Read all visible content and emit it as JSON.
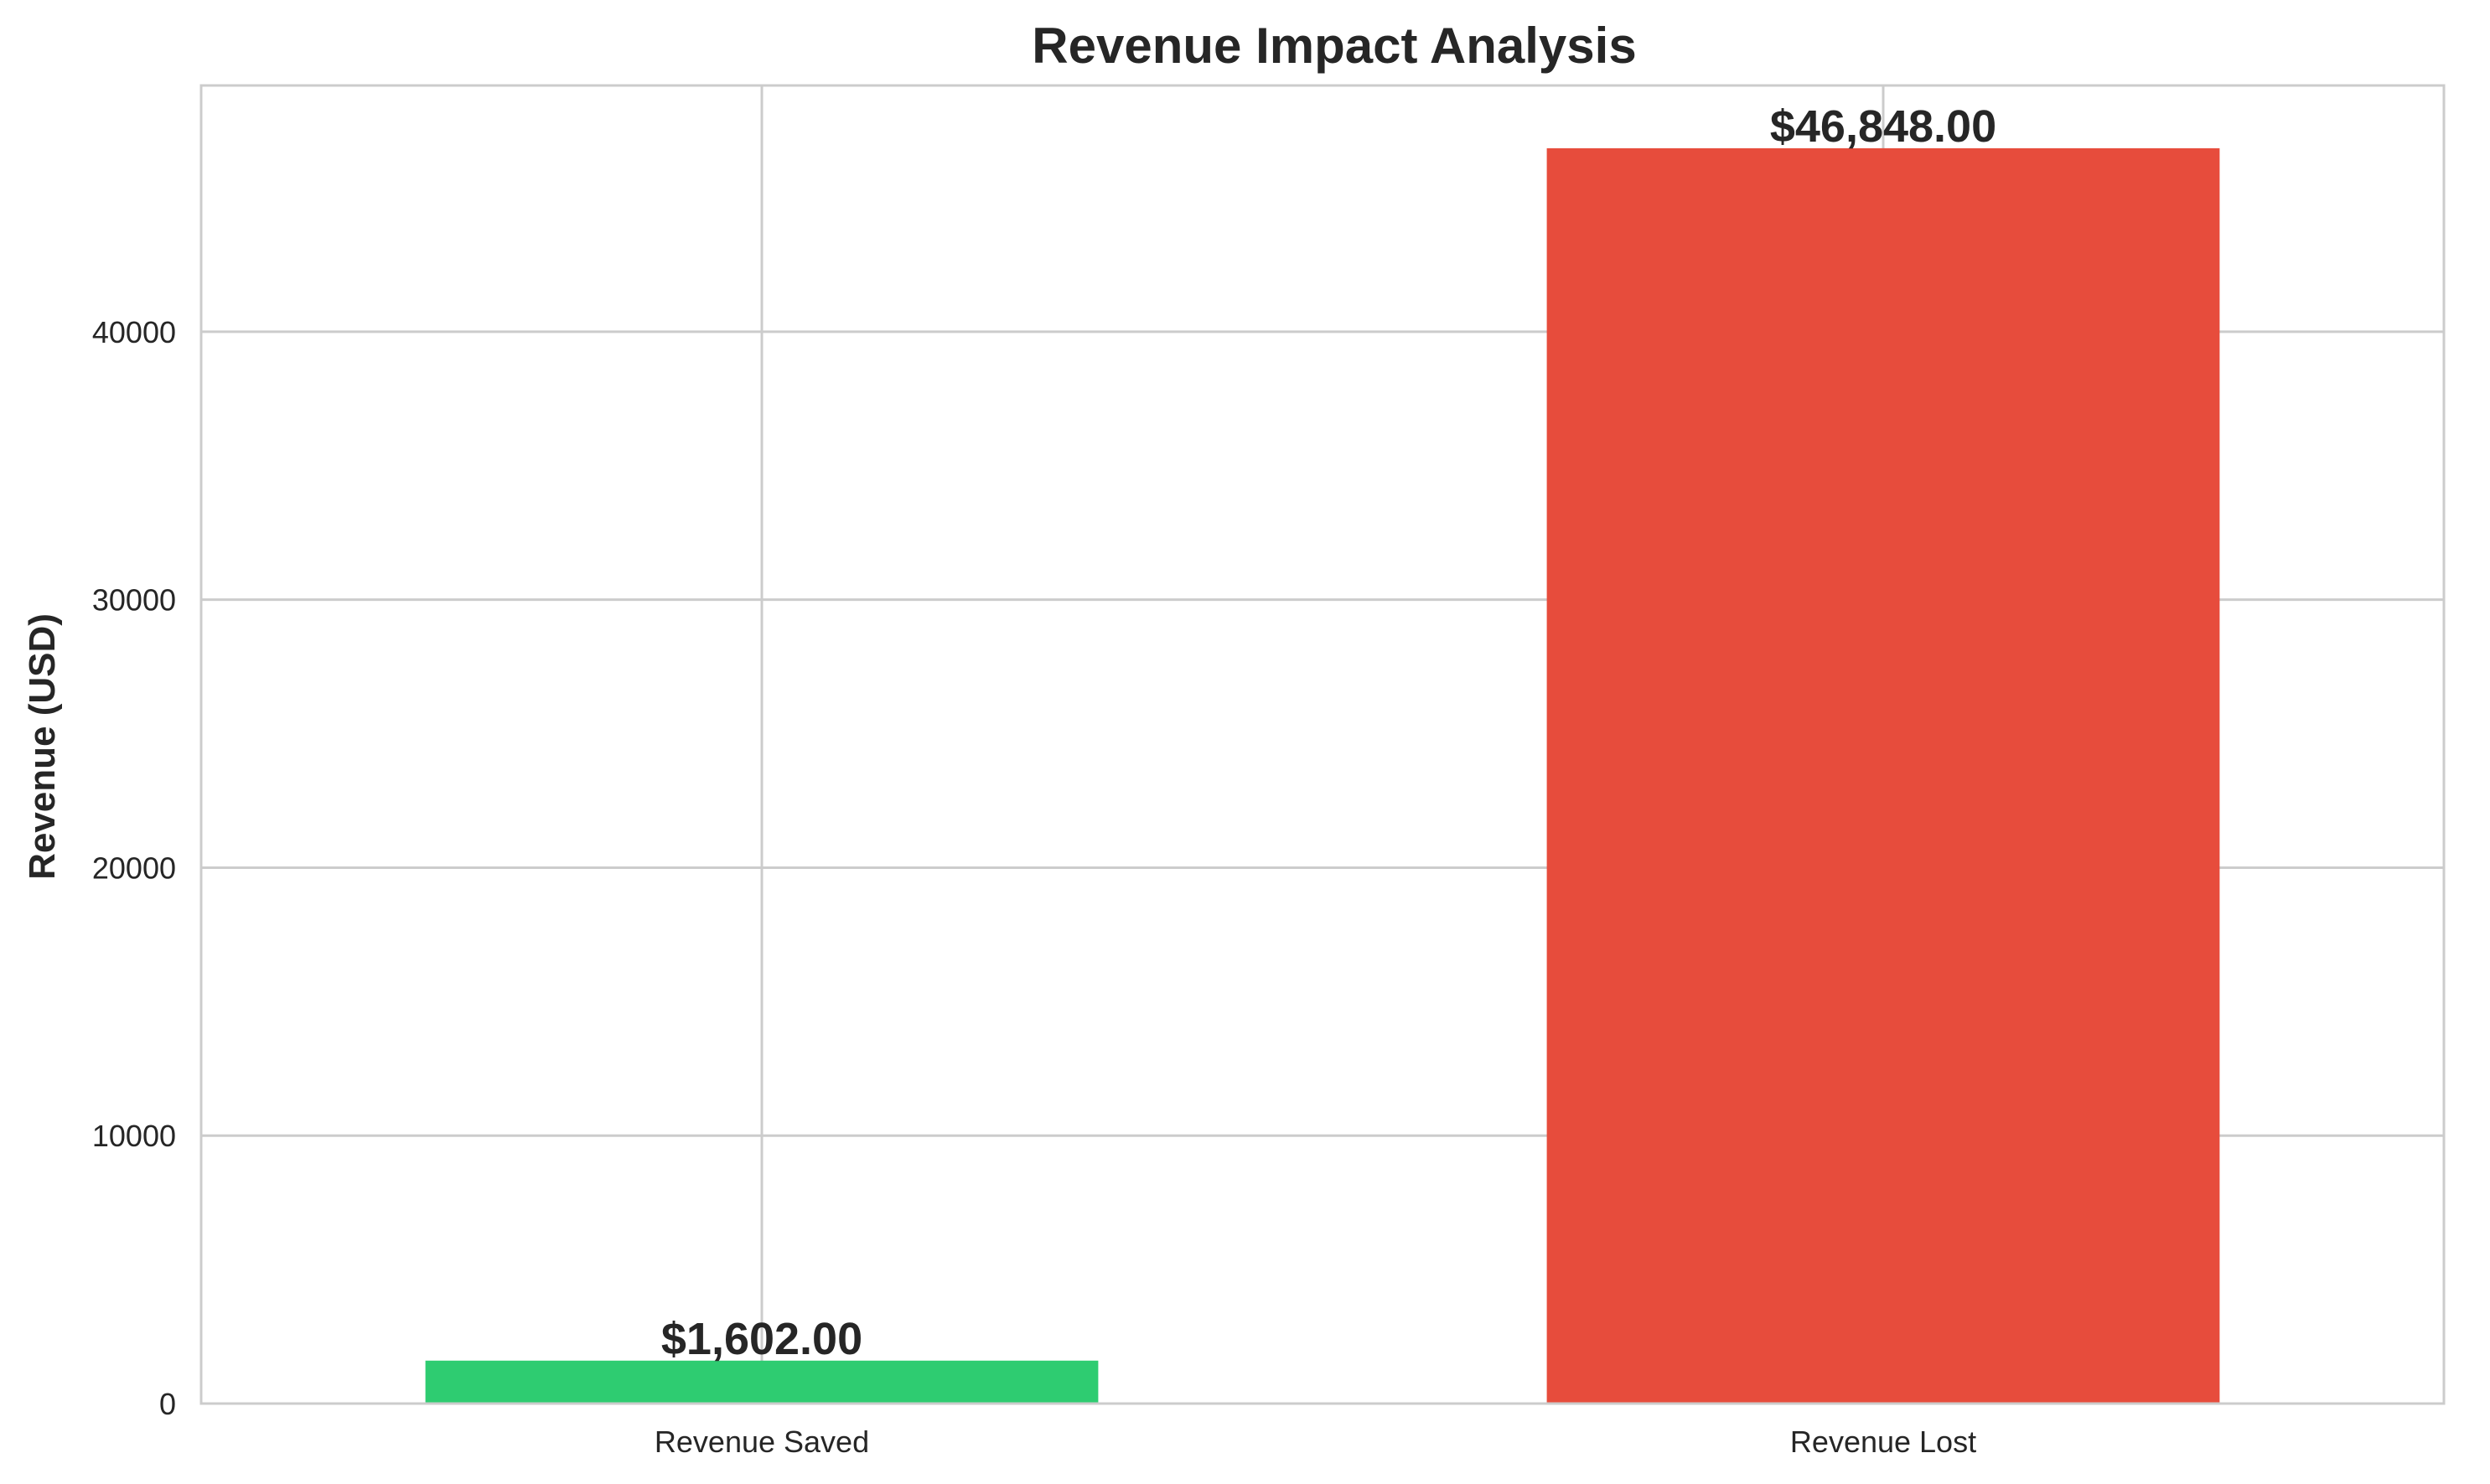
{
  "chart_data": {
    "type": "bar",
    "title": "Revenue Impact Analysis",
    "xlabel": "",
    "ylabel": "Revenue (USD)",
    "categories": [
      "Revenue Saved",
      "Revenue Lost"
    ],
    "values": [
      1602,
      46848
    ],
    "data_labels": [
      "$1,602.00",
      "$46,848.00"
    ],
    "colors": [
      "#2ecc71",
      "#e74c3c"
    ],
    "ylim": [
      0,
      49190
    ],
    "yticks": [
      0,
      10000,
      20000,
      30000,
      40000
    ],
    "ytick_labels": [
      "0",
      "10000",
      "20000",
      "30000",
      "40000"
    ],
    "grid": true,
    "legend": "none"
  }
}
